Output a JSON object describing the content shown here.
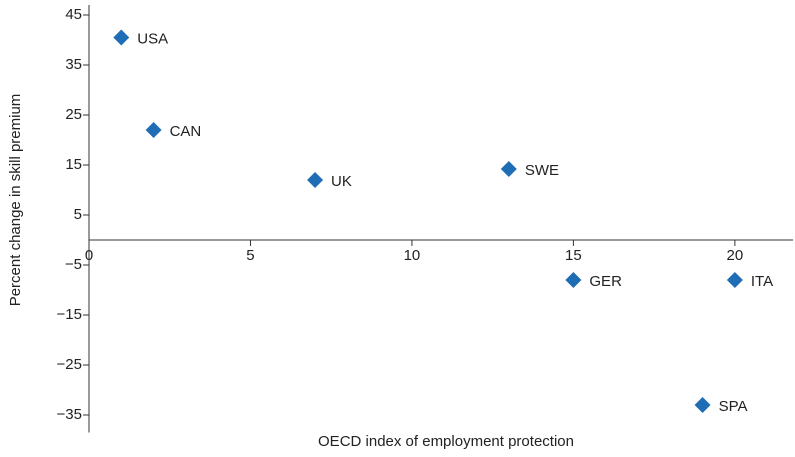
{
  "chart_data": {
    "type": "scatter",
    "x_label": "OECD index of employment protection",
    "y_label": "Percent change in skill premium",
    "labels": [
      "USA",
      "CAN",
      "UK",
      "SWE",
      "GER",
      "ITA",
      "SPA"
    ],
    "x": [
      1,
      2,
      7,
      13,
      15,
      20,
      19
    ],
    "values": [
      40.5,
      22,
      12,
      14.2,
      -8,
      -8,
      -33
    ],
    "color": "#1f6db5",
    "xlim": [
      0,
      21.8
    ],
    "ylim": [
      -38.5,
      47
    ],
    "xticks": [
      0,
      5,
      10,
      15,
      20
    ],
    "yticks": [
      45,
      35,
      25,
      15,
      5,
      {
        "value": -5,
        "label": "−5"
      },
      {
        "value": -15,
        "label": "−15"
      },
      {
        "value": -25,
        "label": "−25"
      },
      {
        "value": -35,
        "label": "−35"
      }
    ]
  }
}
